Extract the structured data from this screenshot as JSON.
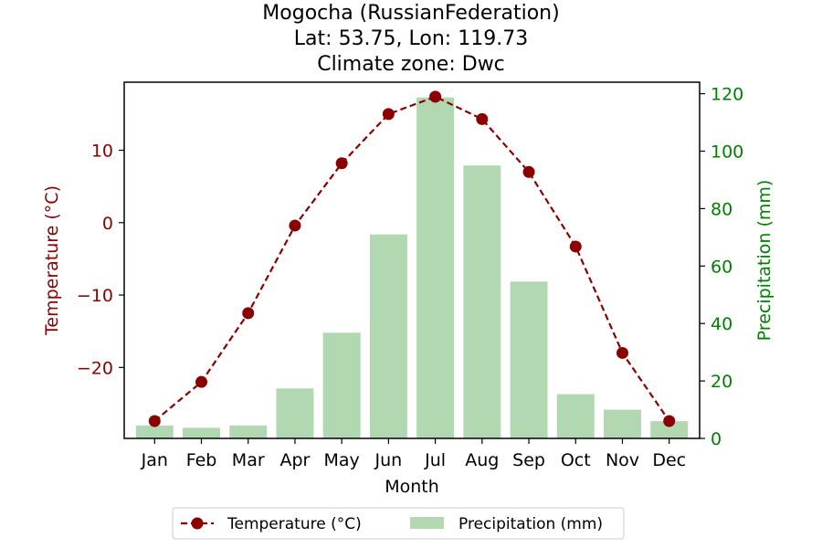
{
  "chart_data": {
    "type": "bar",
    "title_lines": [
      "Mogocha (RussianFederation)",
      "Lat: 53.75, Lon: 119.73",
      "Climate zone: Dwc"
    ],
    "xlabel": "Month",
    "ylabel_left": "Temperature (°C)",
    "ylabel_right": "Precipitation (mm)",
    "categories": [
      "Jan",
      "Feb",
      "Mar",
      "Apr",
      "May",
      "Jun",
      "Jul",
      "Aug",
      "Sep",
      "Oct",
      "Nov",
      "Dec"
    ],
    "left_axis": {
      "ylim": [
        -29.8,
        19.4
      ],
      "ticks": [
        -20,
        -10,
        0,
        10
      ],
      "tick_labels": [
        "−20",
        "−10",
        "0",
        "10"
      ]
    },
    "right_axis": {
      "ylim": [
        0,
        124
      ],
      "ticks": [
        0,
        20,
        40,
        60,
        80,
        100,
        120
      ],
      "tick_labels": [
        "0",
        "20",
        "40",
        "60",
        "80",
        "100",
        "120"
      ]
    },
    "series": [
      {
        "name": "Temperature (°C)",
        "type": "line",
        "axis": "left",
        "color": "#8b0000",
        "line_style": "dashed",
        "marker": "circle",
        "values": [
          -27.4,
          -22.0,
          -12.5,
          -0.4,
          8.2,
          15.0,
          17.4,
          14.3,
          7.0,
          -3.3,
          -18.0,
          -27.4
        ]
      },
      {
        "name": "Precipitation (mm)",
        "type": "bar",
        "axis": "right",
        "color": "#b2d8b2",
        "values": [
          4.5,
          3.7,
          4.5,
          17.4,
          36.8,
          71.0,
          118.7,
          95.0,
          54.6,
          15.4,
          10.0,
          6.0
        ]
      }
    ],
    "colors": {
      "left_axis": "#8b0000",
      "right_axis": "#008000"
    },
    "legend_placement": "bottom-center",
    "grid": false
  }
}
